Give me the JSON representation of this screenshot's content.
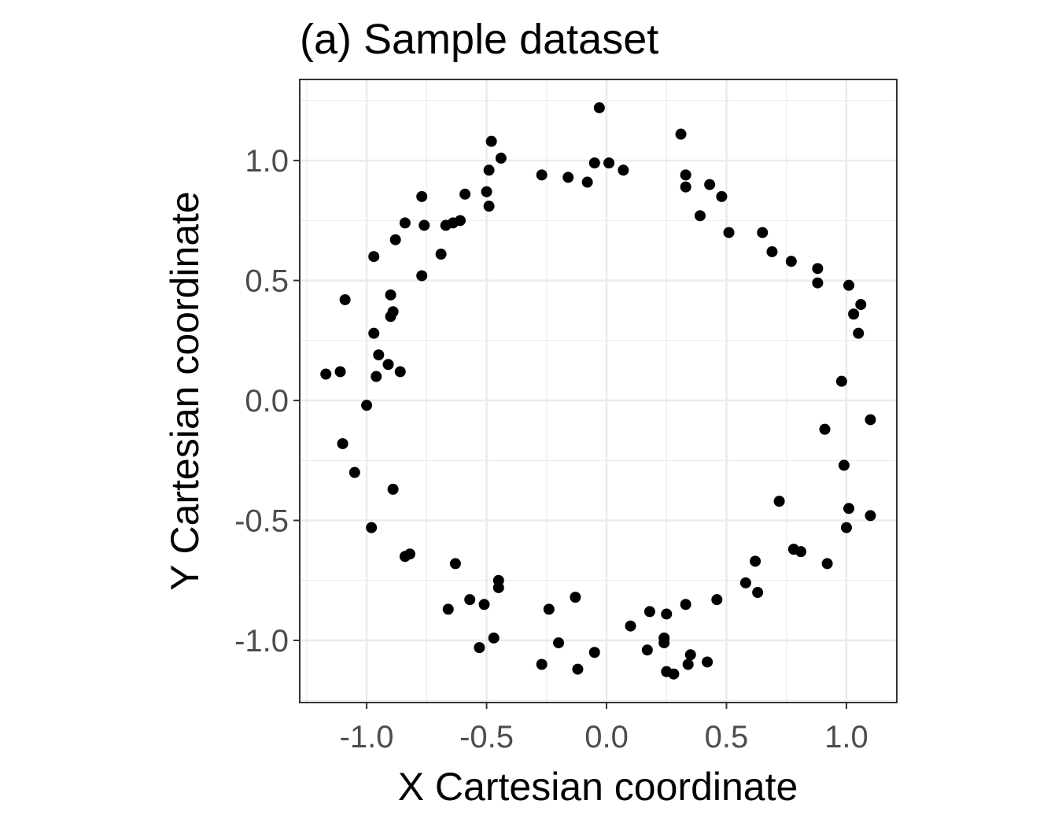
{
  "chart_data": {
    "type": "scatter",
    "title": "(a) Sample dataset",
    "xlabel": "X Cartesian coordinate",
    "ylabel": "Y Cartesian coordinate",
    "xlim": [
      -1.279,
      1.21
    ],
    "ylim": [
      -1.259,
      1.338
    ],
    "xticks": [
      -1.0,
      -0.5,
      0.0,
      0.5,
      1.0
    ],
    "yticks": [
      -1.0,
      -0.5,
      0.0,
      0.5,
      1.0
    ],
    "xtick_labels": [
      "-1.0",
      "-0.5",
      "0.0",
      "0.5",
      "1.0"
    ],
    "ytick_labels": [
      "-1.0",
      "-0.5",
      "0.0",
      "0.5",
      "1.0"
    ],
    "grid": true,
    "colors": {
      "point": "#000000",
      "grid": "#ebebeb",
      "border": "#333333",
      "tick_label": "#4d4d4d"
    },
    "points": [
      [
        -0.03,
        1.22
      ],
      [
        0.31,
        1.11
      ],
      [
        -0.48,
        1.08
      ],
      [
        -0.44,
        1.01
      ],
      [
        -0.49,
        0.96
      ],
      [
        -0.27,
        0.94
      ],
      [
        -0.16,
        0.93
      ],
      [
        -0.08,
        0.91
      ],
      [
        -0.05,
        0.99
      ],
      [
        0.01,
        0.99
      ],
      [
        0.07,
        0.96
      ],
      [
        0.33,
        0.94
      ],
      [
        0.33,
        0.89
      ],
      [
        0.43,
        0.9
      ],
      [
        0.48,
        0.85
      ],
      [
        0.39,
        0.77
      ],
      [
        0.51,
        0.7
      ],
      [
        0.65,
        0.7
      ],
      [
        0.69,
        0.62
      ],
      [
        0.77,
        0.58
      ],
      [
        0.88,
        0.55
      ],
      [
        0.88,
        0.49
      ],
      [
        1.01,
        0.48
      ],
      [
        1.06,
        0.4
      ],
      [
        1.03,
        0.36
      ],
      [
        1.05,
        0.28
      ],
      [
        0.98,
        0.08
      ],
      [
        1.1,
        -0.08
      ],
      [
        0.91,
        -0.12
      ],
      [
        0.99,
        -0.27
      ],
      [
        0.72,
        -0.42
      ],
      [
        1.01,
        -0.45
      ],
      [
        1.1,
        -0.48
      ],
      [
        1.0,
        -0.53
      ],
      [
        0.78,
        -0.62
      ],
      [
        0.81,
        -0.63
      ],
      [
        0.92,
        -0.68
      ],
      [
        0.62,
        -0.67
      ],
      [
        0.58,
        -0.76
      ],
      [
        0.63,
        -0.8
      ],
      [
        0.46,
        -0.83
      ],
      [
        0.33,
        -0.85
      ],
      [
        0.25,
        -0.89
      ],
      [
        0.18,
        -0.88
      ],
      [
        0.1,
        -0.94
      ],
      [
        0.24,
        -0.99
      ],
      [
        0.24,
        -1.01
      ],
      [
        0.17,
        -1.04
      ],
      [
        0.35,
        -1.06
      ],
      [
        0.34,
        -1.1
      ],
      [
        0.42,
        -1.09
      ],
      [
        0.25,
        -1.13
      ],
      [
        0.28,
        -1.14
      ],
      [
        -0.05,
        -1.05
      ],
      [
        -0.13,
        -0.82
      ],
      [
        -0.2,
        -1.01
      ],
      [
        -0.12,
        -1.12
      ],
      [
        -0.24,
        -0.87
      ],
      [
        -0.27,
        -1.1
      ],
      [
        -0.45,
        -0.75
      ],
      [
        -0.45,
        -0.78
      ],
      [
        -0.47,
        -0.99
      ],
      [
        -0.53,
        -1.03
      ],
      [
        -0.51,
        -0.85
      ],
      [
        -0.57,
        -0.83
      ],
      [
        -0.66,
        -0.87
      ],
      [
        -0.63,
        -0.68
      ],
      [
        -0.84,
        -0.65
      ],
      [
        -0.82,
        -0.64
      ],
      [
        -0.98,
        -0.53
      ],
      [
        -0.89,
        -0.37
      ],
      [
        -1.05,
        -0.3
      ],
      [
        -1.1,
        -0.18
      ],
      [
        -1.0,
        -0.02
      ],
      [
        -1.17,
        0.11
      ],
      [
        -1.11,
        0.12
      ],
      [
        -0.96,
        0.1
      ],
      [
        -0.91,
        0.15
      ],
      [
        -0.95,
        0.19
      ],
      [
        -0.86,
        0.12
      ],
      [
        -0.97,
        0.28
      ],
      [
        -0.9,
        0.35
      ],
      [
        -0.89,
        0.37
      ],
      [
        -0.9,
        0.44
      ],
      [
        -1.09,
        0.42
      ],
      [
        -0.97,
        0.6
      ],
      [
        -0.77,
        0.52
      ],
      [
        -0.69,
        0.61
      ],
      [
        -0.88,
        0.67
      ],
      [
        -0.84,
        0.74
      ],
      [
        -0.76,
        0.73
      ],
      [
        -0.67,
        0.73
      ],
      [
        -0.64,
        0.74
      ],
      [
        -0.61,
        0.75
      ],
      [
        -0.77,
        0.85
      ],
      [
        -0.59,
        0.86
      ],
      [
        -0.5,
        0.87
      ],
      [
        -0.49,
        0.81
      ]
    ]
  }
}
